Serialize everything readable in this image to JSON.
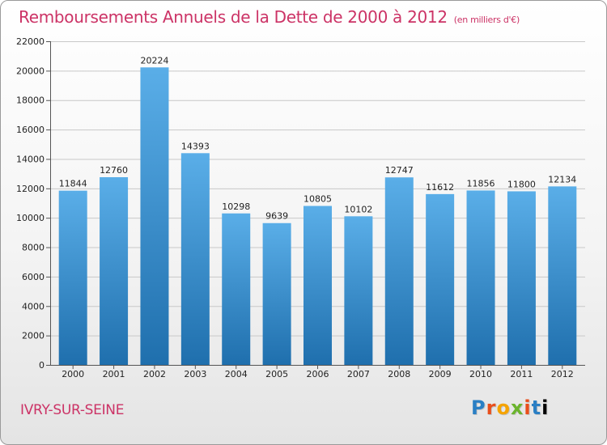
{
  "header": {
    "title": "Remboursements Annuels de la Dette de 2000 à 2012",
    "subtitle": "(en milliers d'€)"
  },
  "footer": {
    "city": "IVRY-SUR-SEINE",
    "logo_letters": [
      "P",
      "r",
      "o",
      "x",
      "i",
      "t",
      "i"
    ]
  },
  "colors": {
    "title": "#cc3366",
    "bar_top": "#5aaee8",
    "bar_bottom": "#1f6fad"
  },
  "chart_data": {
    "type": "bar",
    "title": "Remboursements Annuels de la Dette de 2000 à 2012",
    "subtitle": "(en milliers d'€)",
    "xlabel": "",
    "ylabel": "",
    "categories": [
      "2000",
      "2001",
      "2002",
      "2003",
      "2004",
      "2005",
      "2006",
      "2007",
      "2008",
      "2009",
      "2010",
      "2011",
      "2012"
    ],
    "values": [
      11844,
      12760,
      20224,
      14393,
      10298,
      9639,
      10805,
      10102,
      12747,
      11612,
      11856,
      11800,
      12134
    ],
    "ylim": [
      0,
      22000
    ],
    "yticks": [
      0,
      2000,
      4000,
      6000,
      8000,
      10000,
      12000,
      14000,
      16000,
      18000,
      20000,
      22000
    ],
    "grid": true,
    "legend": "none"
  }
}
